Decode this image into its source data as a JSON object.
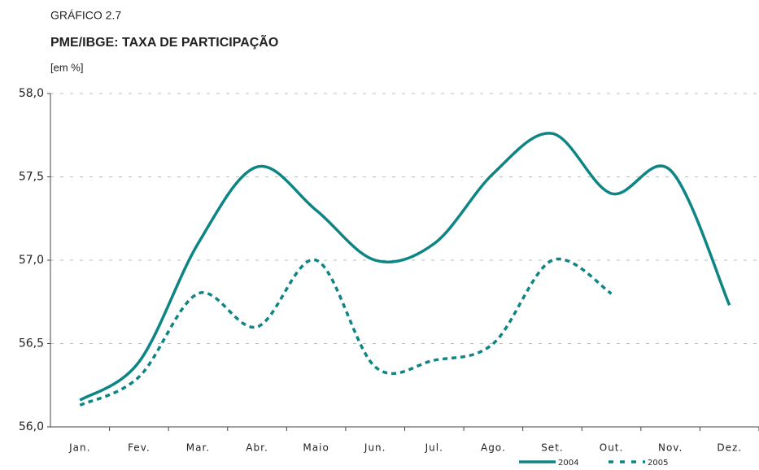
{
  "chart_data": {
    "type": "line",
    "label": "GRÁFICO 2.7",
    "title": "PME/IBGE: TAXA DE PARTICIPAÇÃO",
    "subtitle": "[em %]",
    "categories": [
      "Jan.",
      "Fev.",
      "Mar.",
      "Abr.",
      "Maio",
      "Jun.",
      "Jul.",
      "Ago.",
      "Set.",
      "Out.",
      "Nov.",
      "Dez."
    ],
    "series": [
      {
        "name": "2004",
        "color": "#0e8585",
        "dash": false,
        "values": [
          56.16,
          56.39,
          57.1,
          57.56,
          57.3,
          57.0,
          57.1,
          57.52,
          57.76,
          57.4,
          57.54,
          56.73
        ]
      },
      {
        "name": "2005",
        "color": "#0e8585",
        "dash": true,
        "values": [
          56.13,
          56.3,
          56.8,
          56.6,
          57.0,
          56.36,
          56.4,
          56.5,
          57.0,
          56.8,
          null,
          null
        ]
      }
    ],
    "ylim": [
      56,
      58
    ],
    "yticks": [
      {
        "value": 56,
        "label": "56,0"
      },
      {
        "value": 56.5,
        "label": "56,5"
      },
      {
        "value": 57,
        "label": "57,0"
      },
      {
        "value": 57.5,
        "label": "57,5"
      },
      {
        "value": 58,
        "label": "58,0"
      }
    ],
    "grid": true,
    "legend": "bottom-right"
  }
}
